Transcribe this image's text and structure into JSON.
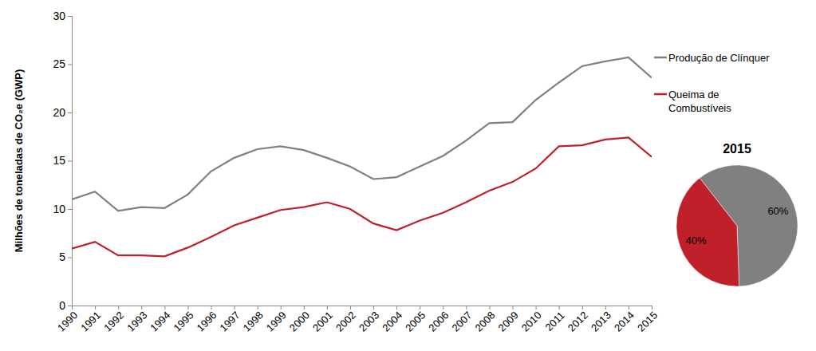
{
  "chart_data": [
    {
      "type": "line",
      "y_label": "Milhões de toneladas de CO₂e (GWP)",
      "x": [
        1990,
        1991,
        1992,
        1993,
        1994,
        1995,
        1996,
        1997,
        1998,
        1999,
        2000,
        2001,
        2002,
        2003,
        2004,
        2005,
        2006,
        2007,
        2008,
        2009,
        2010,
        2011,
        2012,
        2013,
        2014,
        2015
      ],
      "series": [
        {
          "name": "Produção de Clínquer",
          "color": "#808080",
          "values": [
            11.0,
            11.8,
            9.8,
            10.2,
            10.1,
            11.5,
            13.9,
            15.3,
            16.2,
            16.5,
            16.1,
            15.3,
            14.4,
            13.1,
            13.3,
            14.4,
            15.5,
            17.1,
            18.9,
            19.0,
            21.3,
            23.1,
            24.8,
            25.3,
            25.7,
            23.6
          ]
        },
        {
          "name": "Queima de Combustíveis",
          "color": "#c0202a",
          "values": [
            5.9,
            6.6,
            5.2,
            5.2,
            5.1,
            6.0,
            7.1,
            8.3,
            9.1,
            9.9,
            10.2,
            10.7,
            10.0,
            8.5,
            7.8,
            8.8,
            9.6,
            10.7,
            11.9,
            12.8,
            14.2,
            16.5,
            16.6,
            17.2,
            17.4,
            15.4
          ]
        }
      ],
      "xlim": [
        1990,
        2015
      ],
      "xticks": [
        1990,
        1991,
        1992,
        1993,
        1994,
        1995,
        1996,
        1997,
        1998,
        1999,
        2000,
        2001,
        2002,
        2003,
        2004,
        2005,
        2006,
        2007,
        2008,
        2009,
        2010,
        2011,
        2012,
        2013,
        2014,
        2015
      ],
      "ylim": [
        0,
        30
      ],
      "yticks": [
        0,
        5,
        10,
        15,
        20,
        25,
        30
      ],
      "grid": false,
      "legend": "right"
    },
    {
      "type": "pie",
      "title": "2015",
      "values": [
        60,
        40
      ],
      "value_labels": [
        "60%",
        "40%"
      ],
      "colors": [
        "#808080",
        "#c0202a"
      ],
      "data_labels": true
    }
  ]
}
